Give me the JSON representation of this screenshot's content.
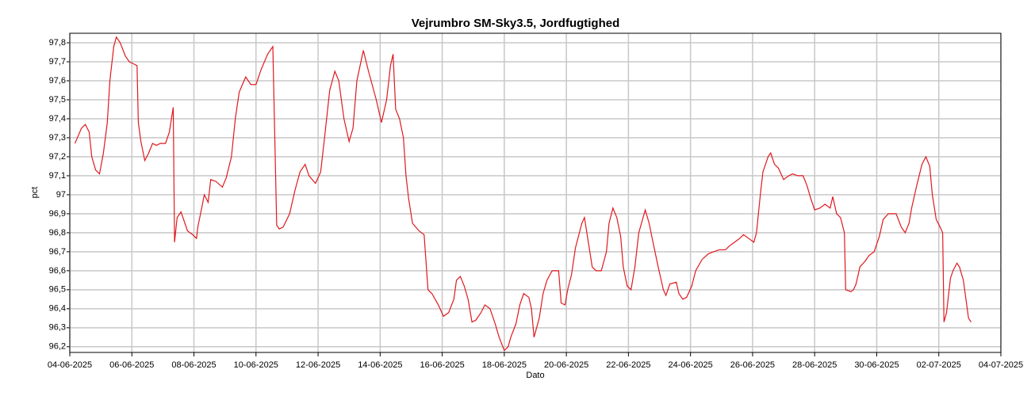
{
  "chart_data": {
    "type": "line",
    "title": "Vejrumbro SM-Sky3.5, Jordfugtighed",
    "x_label": "Dato",
    "y_label": "pct",
    "color": "#e0191e",
    "grid": true,
    "xlim": [
      "2025-06-04",
      "2025-07-04"
    ],
    "xticks": [
      {
        "value": "2025-06-04",
        "label": "04-06-2025"
      },
      {
        "value": "2025-06-06",
        "label": "06-06-2025"
      },
      {
        "value": "2025-06-08",
        "label": "08-06-2025"
      },
      {
        "value": "2025-06-10",
        "label": "10-06-2025"
      },
      {
        "value": "2025-06-12",
        "label": "12-06-2025"
      },
      {
        "value": "2025-06-14",
        "label": "14-06-2025"
      },
      {
        "value": "2025-06-16",
        "label": "16-06-2025"
      },
      {
        "value": "2025-06-18",
        "label": "18-06-2025"
      },
      {
        "value": "2025-06-20",
        "label": "20-06-2025"
      },
      {
        "value": "2025-06-22",
        "label": "22-06-2025"
      },
      {
        "value": "2025-06-24",
        "label": "24-06-2025"
      },
      {
        "value": "2025-06-26",
        "label": "26-06-2025"
      },
      {
        "value": "2025-06-28",
        "label": "28-06-2025"
      },
      {
        "value": "2025-06-30",
        "label": "30-06-2025"
      },
      {
        "value": "2025-07-02",
        "label": "02-07-2025"
      },
      {
        "value": "2025-07-04",
        "label": "04-07-2025"
      }
    ],
    "ylim": [
      96.17,
      97.85
    ],
    "yticks": [
      {
        "value": 96.2,
        "label": "96,2"
      },
      {
        "value": 96.3,
        "label": "96,3"
      },
      {
        "value": 96.4,
        "label": "96,4"
      },
      {
        "value": 96.5,
        "label": "96,5"
      },
      {
        "value": 96.6,
        "label": "96,6"
      },
      {
        "value": 96.7,
        "label": "96,7"
      },
      {
        "value": 96.8,
        "label": "96,8"
      },
      {
        "value": 96.9,
        "label": "96,9"
      },
      97,
      {
        "value": 97.1,
        "label": "97,1"
      },
      {
        "value": 97.2,
        "label": "97,2"
      },
      {
        "value": 97.3,
        "label": "97,3"
      },
      {
        "value": 97.4,
        "label": "97,4"
      },
      {
        "value": 97.5,
        "label": "97,5"
      },
      {
        "value": 97.6,
        "label": "97,6"
      },
      {
        "value": 97.7,
        "label": "97,7"
      },
      {
        "value": 97.8,
        "label": "97,8"
      }
    ],
    "x": [
      "2025-06-04 04:00",
      "2025-06-04 09:00",
      "2025-06-04 12:00",
      "2025-06-04 15:00",
      "2025-06-04 17:00",
      "2025-06-04 20:00",
      "2025-06-04 23:00",
      "2025-06-05 02:00",
      "2025-06-05 05:00",
      "2025-06-05 07:00",
      "2025-06-05 10:00",
      "2025-06-05 12:00",
      "2025-06-05 15:00",
      "2025-06-05 19:00",
      "2025-06-05 22:00",
      "2025-06-06 01:00",
      "2025-06-06 04:00",
      "2025-06-06 05:00",
      "2025-06-06 07:00",
      "2025-06-06 10:00",
      "2025-06-06 13:00",
      "2025-06-06 16:00",
      "2025-06-06 19:00",
      "2025-06-06 22:00",
      "2025-06-07 02:00",
      "2025-06-07 05:00",
      "2025-06-07 08:00",
      "2025-06-07 09:00",
      "2025-06-07 11:00",
      "2025-06-07 14:00",
      "2025-06-07 17:00",
      "2025-06-07 19:00",
      "2025-06-07 23:00",
      "2025-06-08 02:00",
      "2025-06-08 03:00",
      "2025-06-08 06:00",
      "2025-06-08 08:00",
      "2025-06-08 11:00",
      "2025-06-08 13:00",
      "2025-06-08 17:00",
      "2025-06-08 22:00",
      "2025-06-09 01:00",
      "2025-06-09 05:00",
      "2025-06-09 08:00",
      "2025-06-09 11:00",
      "2025-06-09 16:00",
      "2025-06-09 20:00",
      "2025-06-10 00:00",
      "2025-06-10 04:00",
      "2025-06-10 09:00",
      "2025-06-10 13:00",
      "2025-06-10 16:00",
      "2025-06-10 18:00",
      "2025-06-10 21:00",
      "2025-06-11 02:00",
      "2025-06-11 06:00",
      "2025-06-11 10:00",
      "2025-06-11 14:00",
      "2025-06-11 17:00",
      "2025-06-11 22:00",
      "2025-06-12 02:00",
      "2025-06-12 05:00",
      "2025-06-12 09:00",
      "2025-06-12 13:00",
      "2025-06-12 16:00",
      "2025-06-12 20:00",
      "2025-06-13 00:00",
      "2025-06-13 03:00",
      "2025-06-13 06:00",
      "2025-06-13 11:00",
      "2025-06-13 15:00",
      "2025-06-13 21:00",
      "2025-06-14 01:00",
      "2025-06-14 05:00",
      "2025-06-14 08:00",
      "2025-06-14 10:00",
      "2025-06-14 12:00",
      "2025-06-14 15:00",
      "2025-06-14 18:00",
      "2025-06-14 20:00",
      "2025-06-14 22:00",
      "2025-06-15 01:00",
      "2025-06-15 06:00",
      "2025-06-15 10:00",
      "2025-06-15 13:00",
      "2025-06-15 16:00",
      "2025-06-15 21:00",
      "2025-06-16 01:00",
      "2025-06-16 05:00",
      "2025-06-16 09:00",
      "2025-06-16 11:00",
      "2025-06-16 14:00",
      "2025-06-16 17:00",
      "2025-06-16 20:00",
      "2025-06-16 23:00",
      "2025-06-17 02:00",
      "2025-06-17 06:00",
      "2025-06-17 09:00",
      "2025-06-17 13:00",
      "2025-06-17 17:00",
      "2025-06-17 20:00",
      "2025-06-18 00:00",
      "2025-06-18 03:00",
      "2025-06-18 05:00",
      "2025-06-18 09:00",
      "2025-06-18 12:00",
      "2025-06-18 15:00",
      "2025-06-18 19:00",
      "2025-06-18 21:00",
      "2025-06-18 23:00",
      "2025-06-19 03:00",
      "2025-06-19 06:00",
      "2025-06-19 09:00",
      "2025-06-19 13:00",
      "2025-06-19 18:00",
      "2025-06-19 20:00",
      "2025-06-19 23:00",
      "2025-06-20 01:00",
      "2025-06-20 04:00",
      "2025-06-20 07:00",
      "2025-06-20 12:00",
      "2025-06-20 14:00",
      "2025-06-20 17:00",
      "2025-06-20 20:00",
      "2025-06-20 23:00",
      "2025-06-21 03:00",
      "2025-06-21 07:00",
      "2025-06-21 09:00",
      "2025-06-21 12:00",
      "2025-06-21 15:00",
      "2025-06-21 18:00",
      "2025-06-21 20:00",
      "2025-06-21 23:00",
      "2025-06-22 02:00",
      "2025-06-22 05:00",
      "2025-06-22 08:00",
      "2025-06-22 13:00",
      "2025-06-22 16:00",
      "2025-06-22 19:00",
      "2025-06-22 23:00",
      "2025-06-23 03:00",
      "2025-06-23 05:00",
      "2025-06-23 08:00",
      "2025-06-23 13:00",
      "2025-06-23 15:00",
      "2025-06-23 18:00",
      "2025-06-23 21:00",
      "2025-06-24 01:00",
      "2025-06-24 04:00",
      "2025-06-24 09:00",
      "2025-06-24 14:00",
      "2025-06-24 18:00",
      "2025-06-24 22:00",
      "2025-06-25 03:00",
      "2025-06-25 06:00",
      "2025-06-25 10:00",
      "2025-06-25 14:00",
      "2025-06-25 17:00",
      "2025-06-25 21:00",
      "2025-06-26 01:00",
      "2025-06-26 03:00",
      "2025-06-26 06:00",
      "2025-06-26 08:00",
      "2025-06-26 12:00",
      "2025-06-26 14:00",
      "2025-06-26 17:00",
      "2025-06-26 20:00",
      "2025-06-27 00:00",
      "2025-06-27 04:00",
      "2025-06-27 07:00",
      "2025-06-27 11:00",
      "2025-06-27 15:00",
      "2025-06-27 18:00",
      "2025-06-27 21:00",
      "2025-06-28 00:00",
      "2025-06-28 04:00",
      "2025-06-28 08:00",
      "2025-06-28 12:00",
      "2025-06-28 14:00",
      "2025-06-28 17:00",
      "2025-06-28 20:00",
      "2025-06-28 23:00",
      "2025-06-29 00:00",
      "2025-06-29 04:00",
      "2025-06-29 06:00",
      "2025-06-29 08:00",
      "2025-06-29 11:00",
      "2025-06-29 15:00",
      "2025-06-29 18:00",
      "2025-06-29 22:00",
      "2025-06-30 02:00",
      "2025-06-30 05:00",
      "2025-06-30 09:00",
      "2025-06-30 13:00",
      "2025-06-30 15:00",
      "2025-06-30 19:00",
      "2025-06-30 22:00",
      "2025-07-01 01:00",
      "2025-07-01 03:00",
      "2025-07-01 07:00",
      "2025-07-01 11:00",
      "2025-07-01 14:00",
      "2025-07-01 17:00",
      "2025-07-01 19:00",
      "2025-07-01 22:00",
      "2025-07-02 01:00",
      "2025-07-02 03:00",
      "2025-07-02 04:00",
      "2025-07-02 06:00",
      "2025-07-02 09:00",
      "2025-07-02 11:00",
      "2025-07-02 14:00",
      "2025-07-02 16:00",
      "2025-07-02 19:00",
      "2025-07-02 21:00",
      "2025-07-02 23:00",
      "2025-07-03 01:00"
    ],
    "values": [
      97.27,
      97.35,
      97.37,
      97.33,
      97.2,
      97.13,
      97.11,
      97.22,
      97.38,
      97.6,
      97.78,
      97.83,
      97.8,
      97.73,
      97.7,
      97.69,
      97.68,
      97.38,
      97.28,
      97.18,
      97.22,
      97.27,
      97.26,
      97.27,
      97.27,
      97.33,
      97.46,
      96.75,
      96.88,
      96.91,
      96.85,
      96.81,
      96.79,
      96.77,
      96.83,
      96.93,
      97.0,
      96.96,
      97.08,
      97.07,
      97.04,
      97.09,
      97.2,
      97.4,
      97.54,
      97.62,
      97.58,
      97.58,
      97.66,
      97.74,
      97.78,
      96.84,
      96.82,
      96.83,
      96.9,
      97.02,
      97.12,
      97.16,
      97.1,
      97.06,
      97.12,
      97.3,
      97.55,
      97.65,
      97.6,
      97.4,
      97.28,
      97.35,
      97.6,
      97.76,
      97.65,
      97.5,
      97.38,
      97.5,
      97.68,
      97.74,
      97.45,
      97.4,
      97.3,
      97.1,
      96.98,
      96.85,
      96.81,
      96.79,
      96.5,
      96.48,
      96.42,
      96.36,
      96.38,
      96.45,
      96.55,
      96.57,
      96.52,
      96.45,
      96.33,
      96.34,
      96.38,
      96.42,
      96.4,
      96.32,
      96.25,
      96.18,
      96.2,
      96.25,
      96.32,
      96.42,
      96.48,
      96.46,
      96.4,
      96.25,
      96.35,
      96.48,
      96.55,
      96.6,
      96.6,
      96.43,
      96.42,
      96.5,
      96.58,
      96.72,
      96.85,
      96.88,
      96.75,
      96.62,
      96.6,
      96.6,
      96.7,
      96.85,
      96.93,
      96.88,
      96.78,
      96.62,
      96.52,
      96.5,
      96.62,
      96.8,
      96.92,
      96.85,
      96.75,
      96.62,
      96.5,
      96.47,
      96.53,
      96.54,
      96.48,
      96.45,
      96.46,
      96.52,
      96.6,
      96.66,
      96.69,
      96.7,
      96.71,
      96.71,
      96.73,
      96.75,
      96.77,
      96.79,
      96.77,
      96.75,
      96.8,
      97.0,
      97.12,
      97.2,
      97.22,
      97.16,
      97.14,
      97.08,
      97.1,
      97.11,
      97.1,
      97.1,
      97.05,
      96.98,
      96.92,
      96.93,
      96.95,
      96.93,
      96.99,
      96.9,
      96.88,
      96.8,
      96.5,
      96.49,
      96.5,
      96.53,
      96.62,
      96.65,
      96.68,
      96.7,
      96.78,
      96.87,
      96.9,
      96.9,
      96.9,
      96.83,
      96.8,
      96.85,
      96.93,
      97.05,
      97.16,
      97.2,
      97.15,
      97.0,
      96.87,
      96.83,
      96.8,
      96.33,
      96.38,
      96.56,
      96.6,
      96.64,
      96.62,
      96.55,
      96.45,
      96.35,
      96.33
    ]
  }
}
